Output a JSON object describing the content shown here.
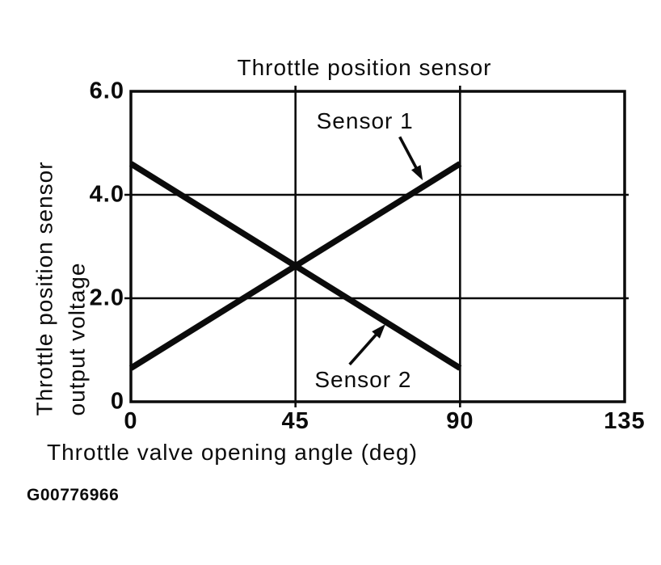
{
  "figure": {
    "code": "G00776966"
  },
  "chart_data": {
    "type": "line",
    "title": "Throttle position sensor",
    "xlabel": "Throttle valve opening angle (deg)",
    "ylabel": "Throttle position sensor output voltage",
    "ylabel_lines": [
      "Throttle position sensor",
      "output voltage"
    ],
    "xlim": [
      0,
      135
    ],
    "ylim": [
      0,
      6.0
    ],
    "x_ticks": [
      0,
      45,
      90,
      135
    ],
    "x_tick_labels": [
      "0",
      "45",
      "90",
      "135"
    ],
    "y_ticks": [
      0,
      2.0,
      4.0,
      6.0
    ],
    "y_tick_labels": [
      "0",
      "2.0",
      "4.0",
      "6.0"
    ],
    "grid": true,
    "legend_position": "in-plot arrow annotations",
    "ink_color": "#0b0b0b",
    "series": [
      {
        "name": "Sensor 1",
        "points": [
          [
            0,
            0.65
          ],
          [
            90,
            4.6
          ]
        ]
      },
      {
        "name": "Sensor 2",
        "points": [
          [
            0,
            4.6
          ],
          [
            90,
            0.65
          ]
        ]
      }
    ],
    "annotations": [
      {
        "label": "Sensor 1",
        "label_x": 64,
        "label_y": 5.42,
        "arrow": {
          "from_x": 73.5,
          "from_y": 5.12,
          "to_x": 79.8,
          "to_y": 4.28
        }
      },
      {
        "label": "Sensor 2",
        "label_x": 63.5,
        "label_y": 0.42,
        "arrow": {
          "from_x": 59.8,
          "from_y": 0.72,
          "to_x": 69.6,
          "to_y": 1.5
        }
      }
    ]
  }
}
